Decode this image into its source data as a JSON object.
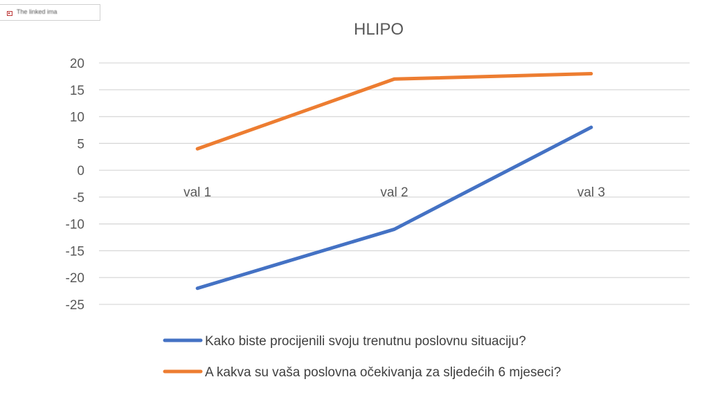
{
  "broken_image": {
    "icon": "broken-image-icon",
    "alt_text": "The linked ima"
  },
  "chart_data": {
    "type": "line",
    "title": "HLIPO",
    "categories": [
      "val 1",
      "val 2",
      "val 3"
    ],
    "series": [
      {
        "name": "Kako biste procijenili svoju trenutnu poslovnu situaciju?",
        "values": [
          -22,
          -11,
          8
        ],
        "color": "#4472c4"
      },
      {
        "name": "A kakva su vaša poslovna očekivanja za sljedećih 6 mjeseci?",
        "values": [
          4,
          17,
          18
        ],
        "color": "#ed7d31"
      }
    ],
    "ylim": [
      -25,
      20
    ],
    "yticks": [
      20,
      15,
      10,
      5,
      0,
      -5,
      -10,
      -15,
      -20,
      -25
    ],
    "grid": true,
    "legend_position": "bottom",
    "xlabel": "",
    "ylabel": ""
  }
}
